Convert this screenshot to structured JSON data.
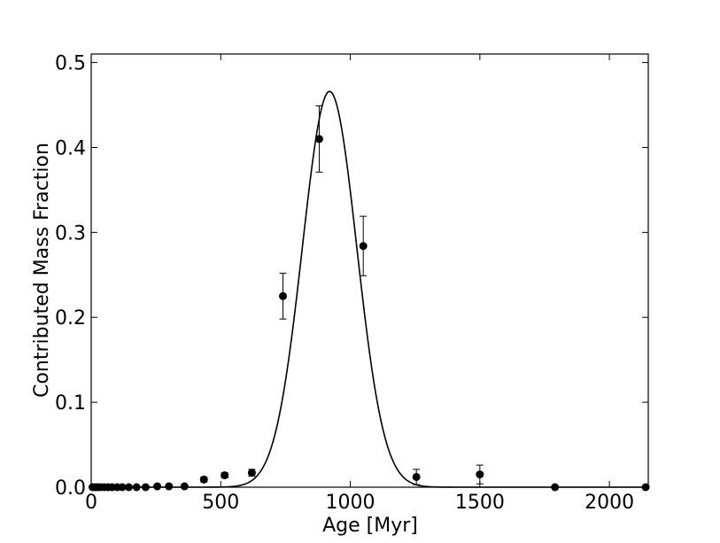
{
  "chart_data": {
    "type": "scatter",
    "title": "",
    "xlabel": "Age [Myr]",
    "ylabel": "Contributed Mass Fraction",
    "xlim": [
      0,
      2150
    ],
    "ylim": [
      0,
      0.51
    ],
    "x_ticks": [
      0,
      500,
      1000,
      1500,
      2000
    ],
    "y_ticks": [
      0.0,
      0.1,
      0.2,
      0.3,
      0.4,
      0.5
    ],
    "x_tick_labels": [
      "0",
      "500",
      "1000",
      "1500",
      "2000"
    ],
    "y_tick_labels": [
      "0.0",
      "0.1",
      "0.2",
      "0.3",
      "0.4",
      "0.5"
    ],
    "grid": false,
    "legend": "none",
    "series": [
      {
        "kind": "points_with_errorbars",
        "color": "#000000",
        "points": [
          {
            "x": 5,
            "y": 0.0,
            "err": 0
          },
          {
            "x": 15,
            "y": 0.0,
            "err": 0
          },
          {
            "x": 25,
            "y": 0.0,
            "err": 0
          },
          {
            "x": 35,
            "y": 0.0,
            "err": 0
          },
          {
            "x": 50,
            "y": 0.0,
            "err": 0
          },
          {
            "x": 65,
            "y": 0.0,
            "err": 0
          },
          {
            "x": 80,
            "y": 0.0,
            "err": 0
          },
          {
            "x": 100,
            "y": 0.0,
            "err": 0
          },
          {
            "x": 120,
            "y": 0.0,
            "err": 0
          },
          {
            "x": 145,
            "y": 0.0,
            "err": 0
          },
          {
            "x": 175,
            "y": 0.0,
            "err": 0
          },
          {
            "x": 210,
            "y": 0.0,
            "err": 0
          },
          {
            "x": 255,
            "y": 0.001,
            "err": 0
          },
          {
            "x": 300,
            "y": 0.001,
            "err": 0
          },
          {
            "x": 360,
            "y": 0.001,
            "err": 0
          },
          {
            "x": 435,
            "y": 0.009,
            "err": 0.003
          },
          {
            "x": 515,
            "y": 0.014,
            "err": 0.003
          },
          {
            "x": 620,
            "y": 0.017,
            "err": 0.004
          },
          {
            "x": 740,
            "y": 0.225,
            "err": 0.027
          },
          {
            "x": 880,
            "y": 0.41,
            "err": 0.039
          },
          {
            "x": 1050,
            "y": 0.284,
            "err": 0.035
          },
          {
            "x": 1255,
            "y": 0.012,
            "err": 0.009
          },
          {
            "x": 1500,
            "y": 0.015,
            "err": 0.011
          },
          {
            "x": 1790,
            "y": 0.0,
            "err": 0
          },
          {
            "x": 2140,
            "y": 0.0,
            "err": 0
          }
        ]
      },
      {
        "kind": "gaussian_fit_curve",
        "color": "#000000",
        "amplitude": 0.466,
        "mean": 920,
        "sigma": 105
      }
    ]
  }
}
